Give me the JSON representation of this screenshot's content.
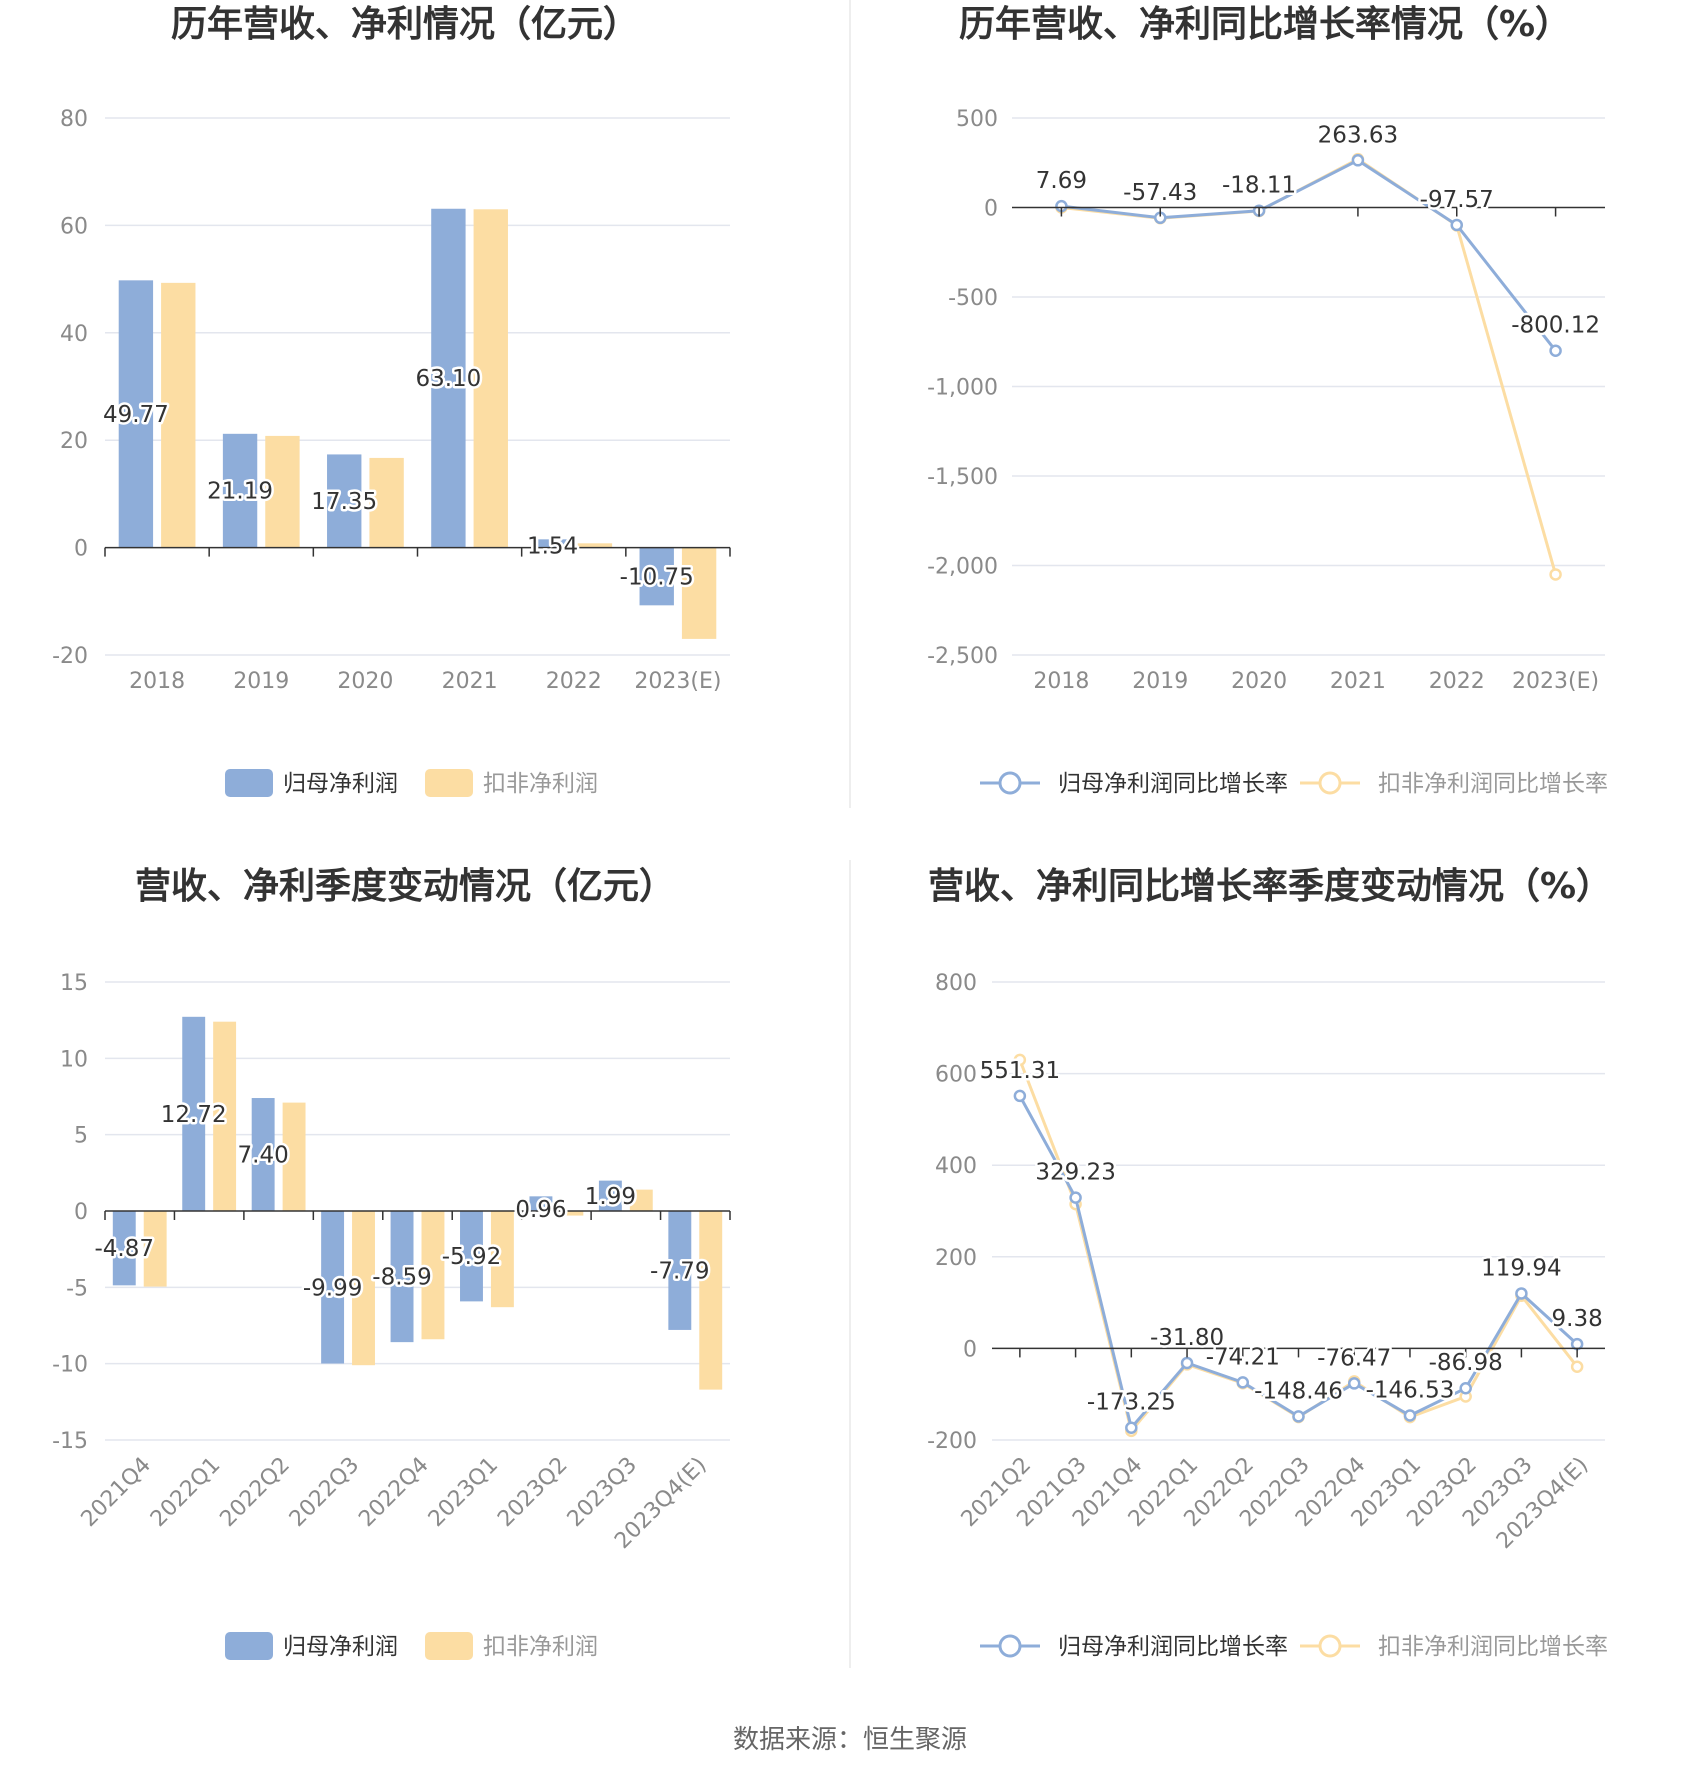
{
  "colors": {
    "blue": "#8EADD9",
    "yellow": "#FCDDA3",
    "grid": "#e3e6ee",
    "axis": "#333333",
    "divider": "#eeeeee"
  },
  "source_text": "数据来源：恒生聚源",
  "chart_data": [
    {
      "type": "bar",
      "title": "历年营收、净利情况（亿元）",
      "categories": [
        "2018",
        "2019",
        "2020",
        "2021",
        "2022",
        "2023(E)"
      ],
      "yticks": [
        "80",
        "60",
        "40",
        "20",
        "0",
        "-20"
      ],
      "ylim": [
        -20,
        80
      ],
      "series": [
        {
          "name": "归母净利润",
          "values": [
            49.77,
            21.19,
            17.35,
            63.1,
            1.54,
            -10.75
          ],
          "labels": [
            "49.77",
            "21.19",
            "17.35",
            "63.10",
            "1.54",
            "-10.75"
          ]
        },
        {
          "name": "扣非净利润",
          "values": [
            49.3,
            20.8,
            16.7,
            63.0,
            0.8,
            -17.0
          ]
        }
      ],
      "legend": "bottom"
    },
    {
      "type": "line",
      "title": "历年营收、净利同比增长率情况（%）",
      "categories": [
        "2018",
        "2019",
        "2020",
        "2021",
        "2022",
        "2023(E)"
      ],
      "yticks": [
        "500",
        "0",
        "-500",
        "-1,000",
        "-1,500",
        "-2,000",
        "-2,500"
      ],
      "ylim": [
        -2500,
        500
      ],
      "series": [
        {
          "name": "归母净利润同比增长率",
          "values": [
            7.69,
            -57.43,
            -18.11,
            263.63,
            -97.57,
            -800.12
          ],
          "labels": [
            "7.69",
            "-57.43",
            "-18.11",
            "263.63",
            "-97.57",
            "-800.12"
          ]
        },
        {
          "name": "扣非净利润同比增长率",
          "values": [
            0,
            -60,
            -20,
            270,
            -100,
            -2050
          ]
        }
      ],
      "legend": "bottom"
    },
    {
      "type": "bar",
      "title": "营收、净利季度变动情况（亿元）",
      "categories": [
        "2021Q4",
        "2022Q1",
        "2022Q2",
        "2022Q3",
        "2022Q4",
        "2023Q1",
        "2023Q2",
        "2023Q3",
        "2023Q4(E)"
      ],
      "yticks": [
        "15",
        "10",
        "5",
        "0",
        "-5",
        "-10",
        "-15"
      ],
      "ylim": [
        -15,
        15
      ],
      "series": [
        {
          "name": "归母净利润",
          "values": [
            -4.87,
            12.72,
            7.4,
            -9.99,
            -8.59,
            -5.92,
            0.96,
            1.99,
            -7.79
          ],
          "labels": [
            "-4.87",
            "12.72",
            "7.40",
            "-9.99",
            "-8.59",
            "-5.92",
            "0.96",
            "1.99",
            "-7.79"
          ]
        },
        {
          "name": "扣非净利润",
          "values": [
            -4.95,
            12.4,
            7.1,
            -10.1,
            -8.4,
            -6.3,
            -0.3,
            1.4,
            -11.7
          ]
        }
      ],
      "legend": "bottom"
    },
    {
      "type": "line",
      "title": "营收、净利同比增长率季度变动情况（%）",
      "categories": [
        "2021Q2",
        "2021Q3",
        "2021Q4",
        "2022Q1",
        "2022Q2",
        "2022Q3",
        "2022Q4",
        "2023Q1",
        "2023Q2",
        "2023Q3",
        "2023Q4(E)"
      ],
      "yticks": [
        "800",
        "600",
        "400",
        "200",
        "0",
        "-200"
      ],
      "ylim": [
        -200,
        800
      ],
      "series": [
        {
          "name": "归母净利润同比增长率",
          "values": [
            551.31,
            329.23,
            -173.25,
            -31.8,
            -74.21,
            -148.46,
            -76.47,
            -146.53,
            -86.98,
            119.94,
            9.38
          ],
          "labels": [
            "551.31",
            "329.23",
            "-173.25",
            "-31.80",
            "-74.21",
            "-148.46",
            "-76.47",
            "-146.53",
            "-86.98",
            "119.94",
            "9.38"
          ]
        },
        {
          "name": "扣非净利润同比增长率",
          "values": [
            630,
            315,
            -180,
            -35,
            -76,
            -150,
            -72,
            -150,
            -105,
            115,
            -40
          ]
        }
      ],
      "legend": "bottom"
    }
  ]
}
